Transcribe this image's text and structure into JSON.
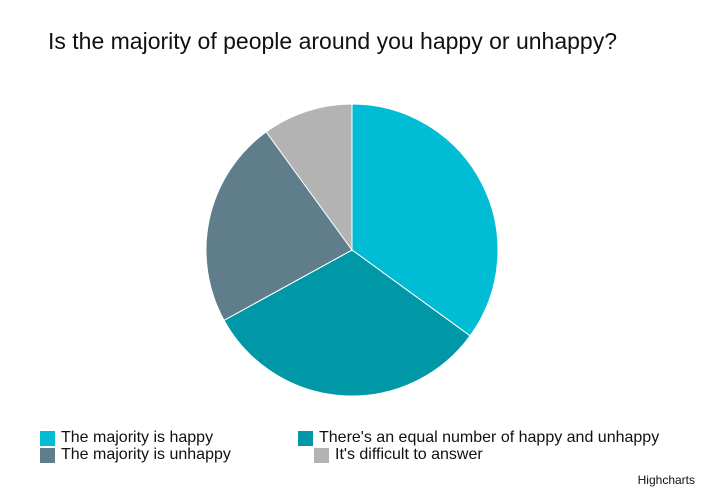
{
  "chart_data": {
    "type": "pie",
    "title": "Is the majority of people around you happy or unhappy?",
    "legend_position": "bottom",
    "slices": [
      {
        "name": "The majority is happy",
        "value": 35,
        "color": "#00BCD4"
      },
      {
        "name": "There's an equal number of happy and unhappy",
        "value": 32,
        "color": "#0097A7"
      },
      {
        "name": "The majority is unhappy",
        "value": 23,
        "color": "#607D8B"
      },
      {
        "name": "It's difficult to answer",
        "value": 10,
        "color": "#B3B3B3"
      }
    ]
  },
  "credits": "Highcharts"
}
